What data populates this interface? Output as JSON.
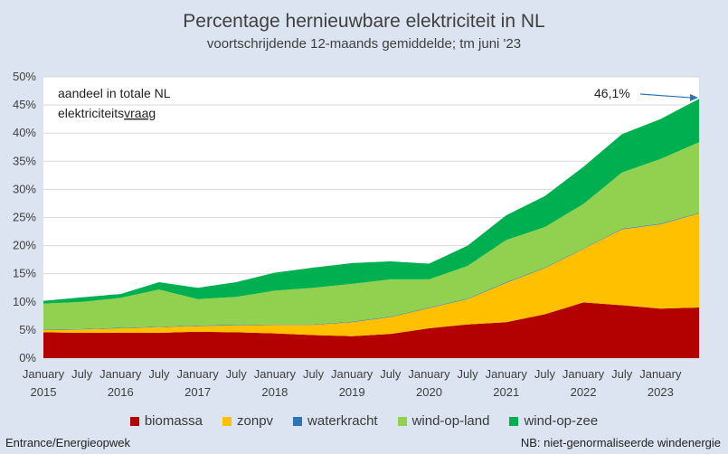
{
  "chart_data": {
    "type": "area",
    "title": "Percentage hernieuwbare elektriciteit in NL",
    "subtitle": "voortschrijdende 12-maands gemiddelde; tm juni '23",
    "ylim": [
      0,
      50
    ],
    "y_ticks": [
      "0%",
      "5%",
      "10%",
      "15%",
      "20%",
      "25%",
      "30%",
      "35%",
      "40%",
      "45%",
      "50%"
    ],
    "x_ticks": [
      {
        "month": "January",
        "year": "2015",
        "t": 0
      },
      {
        "month": "July",
        "year": "",
        "t": 6
      },
      {
        "month": "January",
        "year": "2016",
        "t": 12
      },
      {
        "month": "July",
        "year": "",
        "t": 18
      },
      {
        "month": "January",
        "year": "2017",
        "t": 24
      },
      {
        "month": "July",
        "year": "",
        "t": 30
      },
      {
        "month": "January",
        "year": "2018",
        "t": 36
      },
      {
        "month": "July",
        "year": "",
        "t": 42
      },
      {
        "month": "January",
        "year": "2019",
        "t": 48
      },
      {
        "month": "July",
        "year": "",
        "t": 54
      },
      {
        "month": "January",
        "year": "2020",
        "t": 60
      },
      {
        "month": "July",
        "year": "",
        "t": 66
      },
      {
        "month": "January",
        "year": "2021",
        "t": 72
      },
      {
        "month": "July",
        "year": "",
        "t": 78
      },
      {
        "month": "January",
        "year": "2022",
        "t": 84
      },
      {
        "month": "July",
        "year": "",
        "t": 90
      },
      {
        "month": "January",
        "year": "2023",
        "t": 96
      }
    ],
    "x_months": [
      0,
      6,
      12,
      18,
      24,
      30,
      36,
      42,
      48,
      54,
      60,
      66,
      72,
      78,
      84,
      90,
      96,
      102
    ],
    "stack_order": [
      "biomassa",
      "zonpv",
      "waterkracht",
      "wind-op-land",
      "wind-op-zee"
    ],
    "series": [
      {
        "name": "biomassa",
        "color": "#b30000",
        "values": [
          4.6,
          4.5,
          4.5,
          4.5,
          4.7,
          4.6,
          4.4,
          4.1,
          3.9,
          4.3,
          5.3,
          6.0,
          6.4,
          7.8,
          9.9,
          9.4,
          8.8,
          9.0
        ]
      },
      {
        "name": "zonpv",
        "color": "#ffc000",
        "values": [
          0.4,
          0.6,
          0.8,
          1.0,
          1.0,
          1.2,
          1.5,
          1.8,
          2.5,
          3.0,
          3.6,
          4.5,
          7.0,
          8.2,
          9.5,
          13.5,
          15.0,
          16.7
        ]
      },
      {
        "name": "waterkracht",
        "color": "#2e75b6",
        "values": [
          0.1,
          0.1,
          0.1,
          0.1,
          0.1,
          0.1,
          0.1,
          0.1,
          0.1,
          0.1,
          0.1,
          0.1,
          0.1,
          0.1,
          0.1,
          0.1,
          0.1,
          0.1
        ]
      },
      {
        "name": "wind-op-land",
        "color": "#92d050",
        "values": [
          4.6,
          4.8,
          5.3,
          6.6,
          4.7,
          5.0,
          6.0,
          6.5,
          6.7,
          6.6,
          5.0,
          5.8,
          7.5,
          7.2,
          7.9,
          10.0,
          11.5,
          12.6
        ]
      },
      {
        "name": "wind-op-zee",
        "color": "#00b050",
        "values": [
          0.5,
          0.8,
          0.7,
          1.3,
          2.0,
          2.6,
          3.2,
          3.6,
          3.7,
          3.2,
          2.8,
          3.6,
          4.4,
          5.5,
          6.6,
          6.8,
          7.1,
          7.7
        ]
      }
    ],
    "annotation_label": "aandeel in totale NL elektriciteitsvraag",
    "annotation_line1": "aandeel in totale NL",
    "annotation_line2_plain": "elektriciteits",
    "annotation_line2_underlined": "vraag",
    "end_value_label": "46,1%",
    "end_value": 46.1,
    "grid": "horizontal"
  },
  "legend_items": [
    {
      "label": "biomassa",
      "color": "#b30000"
    },
    {
      "label": "zonpv",
      "color": "#ffc000"
    },
    {
      "label": "waterkracht",
      "color": "#2e75b6"
    },
    {
      "label": "wind-op-land",
      "color": "#92d050"
    },
    {
      "label": "wind-op-zee",
      "color": "#00b050"
    }
  ],
  "footer": {
    "source": "Entrance/Energieopwek",
    "note": "NB: niet-genormaliseerde windenergie"
  }
}
